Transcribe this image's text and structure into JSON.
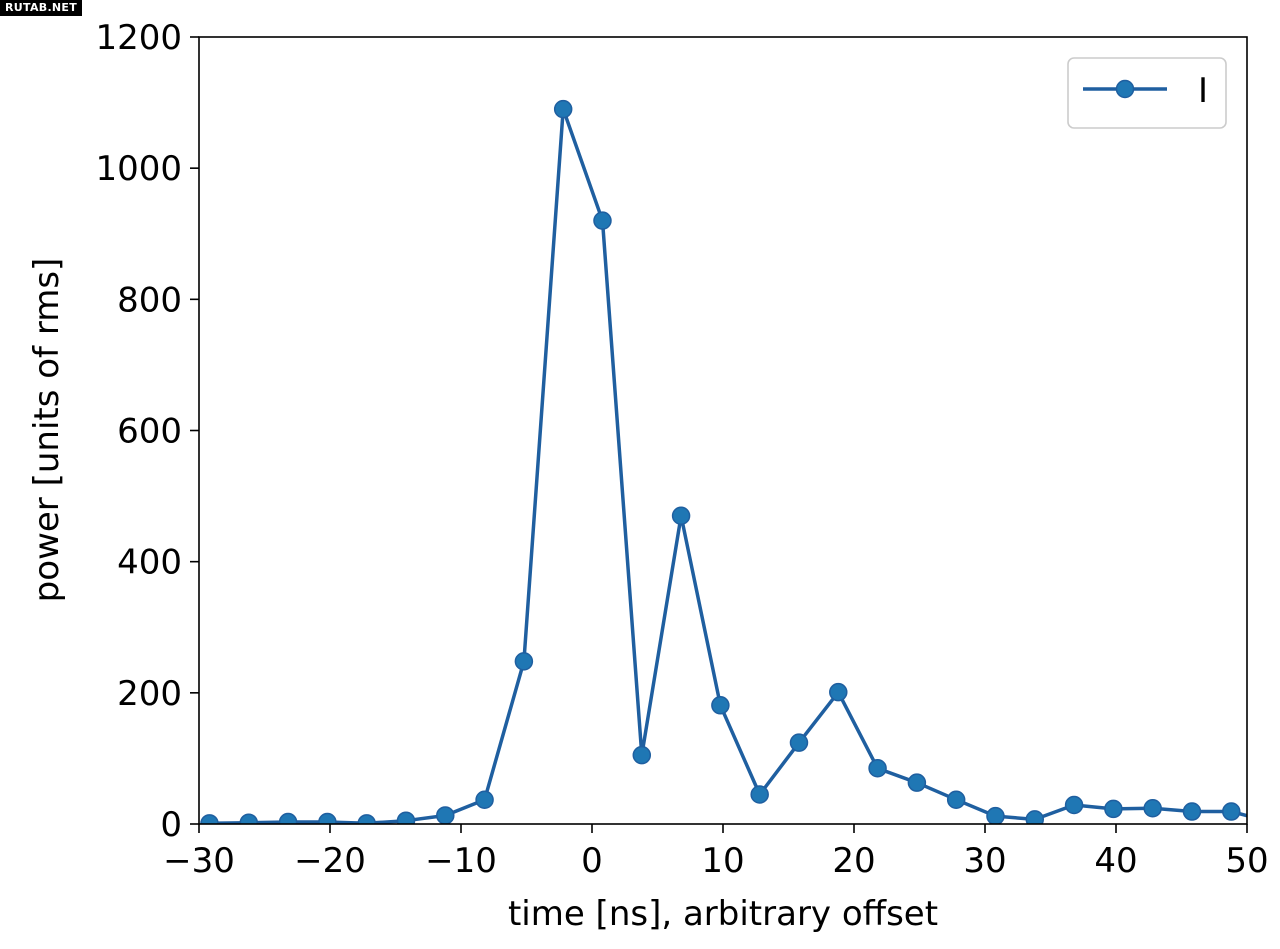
{
  "watermark": "RUTAB.NET",
  "chart_data": {
    "type": "line",
    "title": "",
    "xlabel": "time [ns], arbitrary offset",
    "ylabel": "power [units of rms]",
    "xlim": [
      -30,
      50
    ],
    "ylim": [
      0,
      1200
    ],
    "xticks": [
      -30,
      -20,
      -10,
      0,
      10,
      20,
      30,
      40,
      50
    ],
    "xtick_labels": [
      "−30",
      "−20",
      "−10",
      "0",
      "10",
      "20",
      "30",
      "40",
      "50"
    ],
    "yticks": [
      0,
      200,
      400,
      600,
      800,
      1000,
      1200
    ],
    "ytick_labels": [
      "0",
      "200",
      "400",
      "600",
      "800",
      "1000",
      "1200"
    ],
    "grid": false,
    "legend_position": "top-right",
    "series_color": "#1f5fa0",
    "marker_color": "#1f77b4",
    "series": [
      {
        "name": "I",
        "x": [
          -29.2,
          -26.2,
          -23.2,
          -20.2,
          -17.2,
          -14.2,
          -11.2,
          -8.2,
          -5.2,
          -2.2,
          0.8,
          3.8,
          6.8,
          9.8,
          12.8,
          15.8,
          18.8,
          21.8,
          24.8,
          27.8,
          30.8,
          33.8,
          36.8,
          39.8,
          42.8,
          45.8,
          48.8,
          51.8
        ],
        "values": [
          1,
          2,
          3,
          3,
          1,
          5,
          13,
          37,
          248,
          1090,
          920,
          105,
          470,
          181,
          45,
          124,
          201,
          85,
          63,
          37,
          12,
          7,
          29,
          23,
          24,
          19,
          19,
          3
        ]
      }
    ]
  }
}
